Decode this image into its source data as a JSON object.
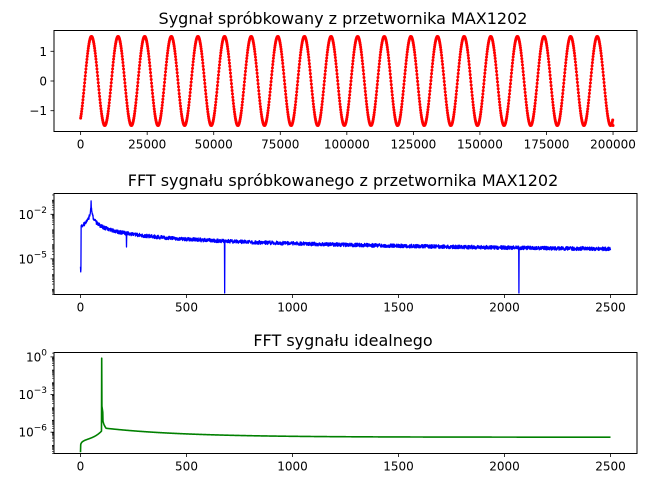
{
  "chart_data": [
    {
      "type": "scatter",
      "title": "Sygnał spróbkowany z przetwornika MAX1202",
      "xlabel": "",
      "ylabel": "",
      "color": "#ff0000",
      "xlim": [
        -10000,
        209000
      ],
      "ylim": [
        -1.7,
        1.7
      ],
      "x_ticks": [
        0,
        25000,
        50000,
        75000,
        100000,
        125000,
        150000,
        175000,
        200000
      ],
      "y_ticks": [
        -1,
        0,
        1
      ],
      "tick_labels_x": [
        "0",
        "25000",
        "50000",
        "75000",
        "100000",
        "125000",
        "150000",
        "175000",
        "200000"
      ],
      "tick_labels_y": [
        "−1",
        "0",
        "1"
      ],
      "signal": {
        "amplitude": 1.5,
        "period": 10000,
        "phase_x": 0,
        "x_start": 0,
        "x_end": 200000,
        "point_count": 1600,
        "first_value": -1.25,
        "last_value": -1.5
      }
    },
    {
      "type": "line",
      "title": "FFT sygnału spróbkowanego z przetwornika MAX1202",
      "xlabel": "",
      "ylabel": "",
      "color": "#0000ff",
      "scale_y": "log",
      "xlim": [
        -125,
        2625
      ],
      "ylim_log10": [
        -7.4,
        -0.6
      ],
      "x_ticks": [
        0,
        500,
        1000,
        1500,
        2000,
        2500
      ],
      "tick_labels_x": [
        "0",
        "500",
        "1000",
        "1500",
        "2000",
        "2500"
      ],
      "y_ticks": [
        {
          "base": "10",
          "exp": "−2",
          "log10": -2
        },
        {
          "base": "10",
          "exp": "−5",
          "log10": -5
        }
      ],
      "noise_floor_log10": -5.1,
      "features": [
        {
          "x": 50,
          "log10": -1.1,
          "label": "main peak"
        },
        {
          "x": 216,
          "log10": -3.3,
          "label": "harmonic"
        },
        {
          "x": 680,
          "log10": -7.3,
          "label": "dip"
        },
        {
          "x": 2068,
          "log10": -7.3,
          "label": "dip"
        }
      ]
    },
    {
      "type": "line",
      "title": "FFT sygnału idealnego",
      "xlabel": "",
      "ylabel": "",
      "color": "#008000",
      "scale_y": "log",
      "xlim": [
        -125,
        2625
      ],
      "ylim_log10": [
        -7.7,
        0.35
      ],
      "x_ticks": [
        0,
        500,
        1000,
        1500,
        2000,
        2500
      ],
      "tick_labels_x": [
        "0",
        "500",
        "1000",
        "1500",
        "2000",
        "2500"
      ],
      "y_ticks": [
        {
          "base": "10",
          "exp": "0",
          "log10": 0
        },
        {
          "base": "10",
          "exp": "−3",
          "log10": -3
        },
        {
          "base": "10",
          "exp": "−6",
          "log10": -6
        }
      ],
      "peak": {
        "x": 100,
        "log10": -0.1
      },
      "start_log10": -7.6,
      "end_log10": -6.4
    }
  ]
}
